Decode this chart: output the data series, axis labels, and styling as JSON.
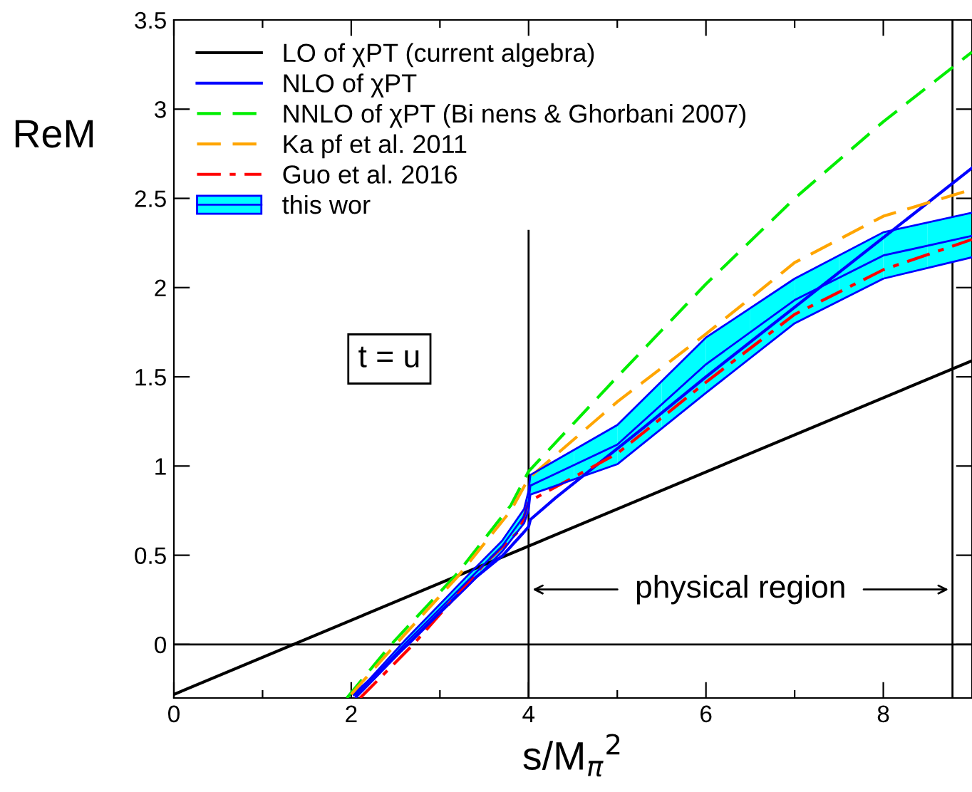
{
  "chart_data": {
    "type": "line",
    "xlabel": "s/M$_{π}$$^{2}$",
    "ylabel": "ReM",
    "xlim": [
      0,
      9
    ],
    "ylim": [
      -0.3,
      3.5
    ],
    "xticks": [
      0,
      {
        "value": 1,
        "label": null
      },
      2,
      {
        "value": 3,
        "label": null
      },
      4,
      {
        "value": 5,
        "label": null
      },
      6,
      {
        "value": 7,
        "label": null
      },
      8
    ],
    "yticks": [
      0,
      0.5,
      1,
      1.5,
      2,
      2.5,
      3,
      3.5
    ],
    "grid": false,
    "legend": "top left",
    "series": [
      {
        "name": "LO of χPT (current algebra)",
        "color": "#000000",
        "line_style": "solid",
        "x": [
          0,
          9
        ],
        "values": [
          -0.28,
          1.59
        ]
      },
      {
        "name": "NLO of χPT",
        "color": "#0000ff",
        "line_style": "solid",
        "x": [
          2.03,
          2.64,
          3.0,
          3.39,
          3.71,
          3.93,
          4.0,
          4.02,
          4.3,
          5.31,
          6.0,
          7.0,
          8.0,
          9.0
        ],
        "values": [
          -0.28,
          0.0,
          0.18,
          0.37,
          0.5,
          0.62,
          0.66,
          0.7,
          0.82,
          1.22,
          1.5,
          1.89,
          2.28,
          2.67
        ]
      },
      {
        "name": "NNLO of χPT (Bi nens & Ghorbani 2007)",
        "color": "#00ee00",
        "line_style": "dashed",
        "x": [
          1.95,
          2.45,
          3.2,
          3.8,
          4.0,
          5.0,
          6.0,
          7.0,
          8.0,
          9.0
        ],
        "values": [
          -0.3,
          0.0,
          0.4,
          0.78,
          0.97,
          1.5,
          2.02,
          2.5,
          2.93,
          3.32
        ]
      },
      {
        "name": "Ka pf et al. 2011",
        "color": "#ffa500",
        "line_style": "dashed",
        "x": [
          2.0,
          2.5,
          3.2,
          3.8,
          4.0,
          5.0,
          6.0,
          7.0,
          8.0,
          9.0
        ],
        "values": [
          -0.28,
          0.0,
          0.38,
          0.75,
          0.93,
          1.36,
          1.74,
          2.14,
          2.4,
          2.55
        ]
      },
      {
        "name": "Guo et al. 2016",
        "color": "#ff0000",
        "line_style": "dashdot",
        "x": [
          2.1,
          2.7,
          3.5,
          3.9,
          4.0,
          5.0,
          6.0,
          7.0,
          8.0,
          9.0
        ],
        "values": [
          -0.3,
          0.0,
          0.45,
          0.64,
          0.8,
          1.07,
          1.47,
          1.85,
          2.1,
          2.27
        ]
      },
      {
        "name": "this wor",
        "color": "#0000ff",
        "colors": [
          "#00ffff",
          "#00ffff",
          "#00ffff",
          "#00ffff",
          "#00ffff",
          "#00ffff",
          "#00ffff",
          "#00ffff",
          "#00ffff",
          "#00ffff",
          "#00ffff",
          "#00ffff"
        ],
        "line_style": "solid",
        "x": [
          2.05,
          2.6,
          3.3,
          3.7,
          3.95,
          4.0,
          4.02,
          5.0,
          6.0,
          7.0,
          8.0,
          9.0
        ],
        "values": [
          -0.29,
          0.0,
          0.35,
          0.55,
          0.72,
          0.8,
          0.89,
          1.12,
          1.57,
          1.93,
          2.18,
          2.29
        ],
        "lower": [
          -0.3,
          -0.02,
          0.32,
          0.52,
          0.68,
          0.75,
          0.84,
          1.01,
          1.41,
          1.8,
          2.05,
          2.17
        ],
        "upper": [
          -0.28,
          0.02,
          0.38,
          0.58,
          0.76,
          0.86,
          0.95,
          1.23,
          1.72,
          2.05,
          2.31,
          2.42
        ]
      },
      {
        "color": "#0000ff",
        "line_style": "solid",
        "x": [
          2.05,
          2.6,
          3.3,
          3.7,
          3.95,
          4.0,
          4.02,
          5.0,
          6.0,
          7.0,
          8.0,
          9.0
        ],
        "values": [
          -0.3,
          -0.02,
          0.32,
          0.52,
          0.68,
          0.75,
          0.84,
          1.01,
          1.41,
          1.8,
          2.05,
          2.17
        ]
      },
      {
        "color": "#0000ff",
        "line_style": "solid",
        "x": [
          2.05,
          2.6,
          3.3,
          3.7,
          3.95,
          4.0,
          4.02,
          5.0,
          6.0,
          7.0,
          8.0,
          9.0
        ],
        "values": [
          -0.28,
          0.02,
          0.38,
          0.58,
          0.76,
          0.86,
          0.95,
          1.23,
          1.72,
          2.05,
          2.31,
          2.42
        ]
      }
    ],
    "ref_lines": [
      {
        "axis": "y",
        "value": 0,
        "color": "#000000"
      },
      {
        "axis": "x",
        "value": 4,
        "color": "#000000"
      },
      {
        "axis": "x",
        "value": 8.78,
        "color": "#000000"
      }
    ],
    "annotations": [
      "physical region",
      "t = u"
    ]
  }
}
